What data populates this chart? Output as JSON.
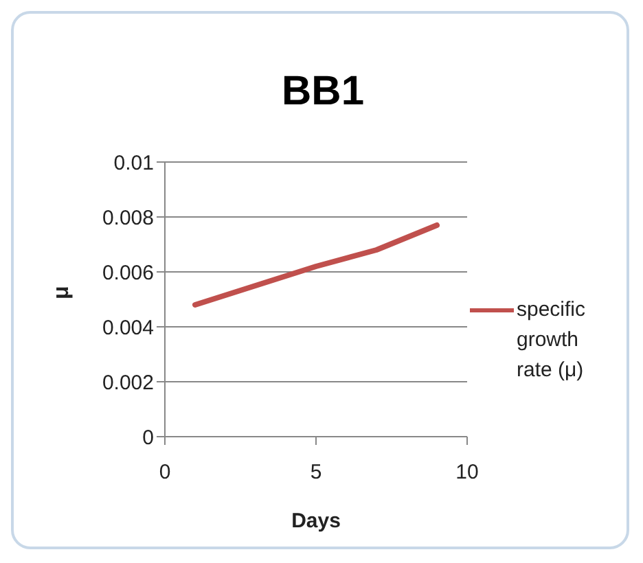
{
  "chart_data": {
    "type": "line",
    "title": "BB1",
    "xlabel": "Days",
    "ylabel": "μ",
    "x": [
      1,
      3,
      5,
      7,
      9
    ],
    "series": [
      {
        "name": "specific growth rate (μ)",
        "color": "#c0504d",
        "values": [
          0.0048,
          0.0055,
          0.0062,
          0.0068,
          0.0077
        ]
      }
    ],
    "xlim": [
      0,
      10
    ],
    "xticks": [
      0,
      5,
      10
    ],
    "ylim": [
      0,
      0.01
    ],
    "yticks": [
      0,
      0.002,
      0.004,
      0.006,
      0.008,
      0.01
    ],
    "grid": "y",
    "legend": "right",
    "marker": "none",
    "line_style": "solid"
  }
}
